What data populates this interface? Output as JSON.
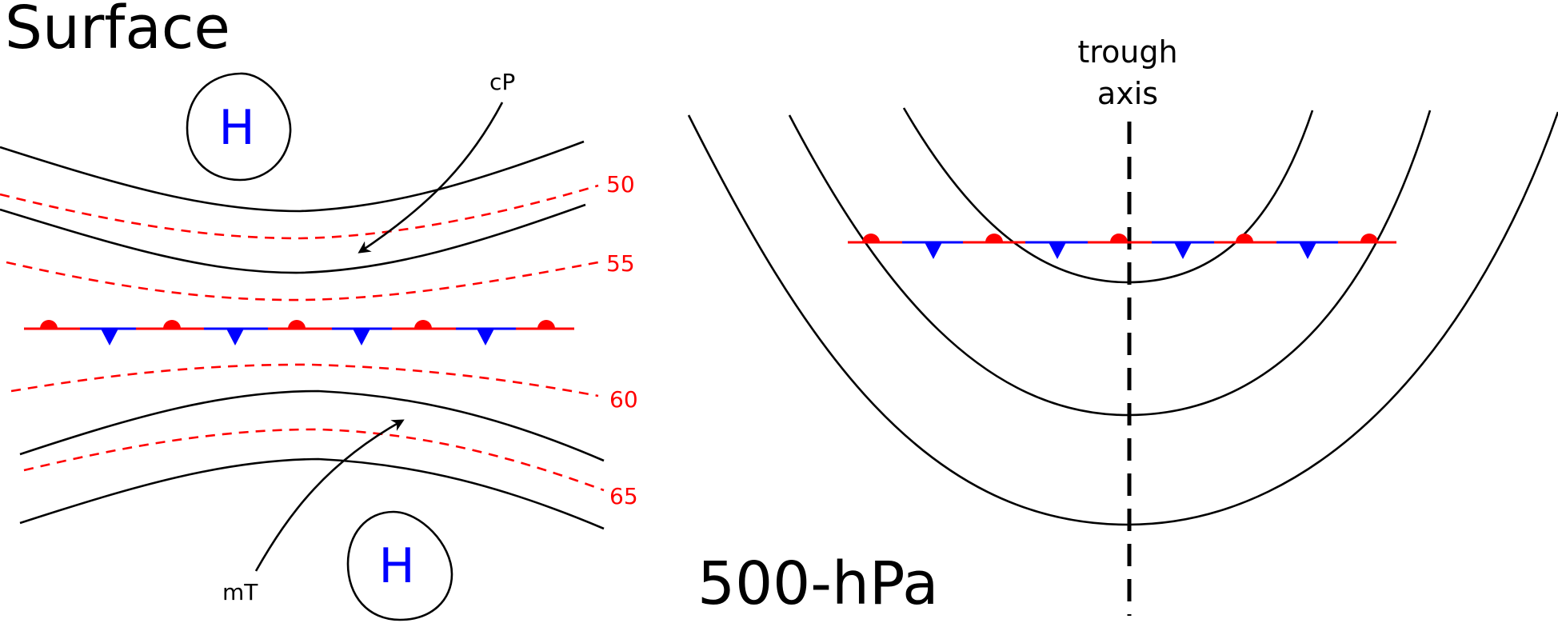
{
  "surface": {
    "title": "Surface",
    "high_label": "H",
    "airmass_north": "cP",
    "airmass_south": "mT",
    "isotherm_labels": [
      "50",
      "55",
      "60",
      "65"
    ]
  },
  "upper": {
    "title": "500-hPa",
    "trough_label_line1": "trough",
    "trough_label_line2": "axis"
  },
  "colors": {
    "warm": "#ff0000",
    "cold": "#0000ff",
    "high": "#0000ff",
    "contour": "#000000"
  },
  "symbols": {
    "front": "stationary-front",
    "high": "high-pressure-center",
    "arrow": "airflow-arrow"
  }
}
